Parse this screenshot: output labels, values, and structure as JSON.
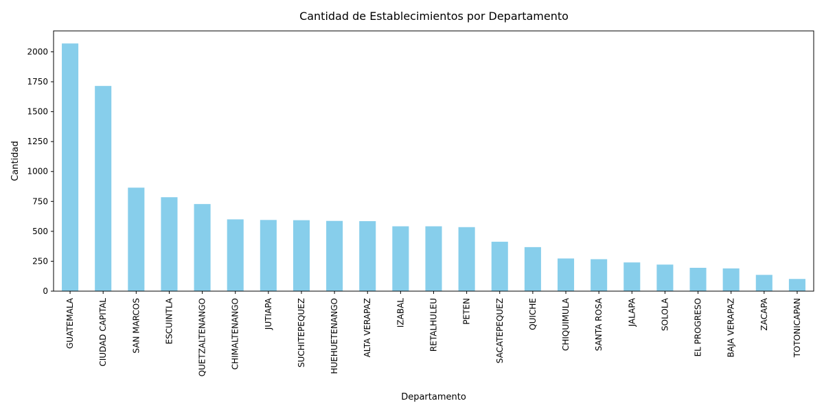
{
  "chart_data": {
    "type": "bar",
    "title": "Cantidad de Establecimientos por Departamento",
    "xlabel": "Departamento",
    "ylabel": "Cantidad",
    "categories": [
      "GUATEMALA",
      "CIUDAD CAPITAL",
      "SAN MARCOS",
      "ESCUINTLA",
      "QUETZALTENANGO",
      "CHIMALTENANGO",
      "JUTIAPA",
      "SUCHITEPEQUEZ",
      "HUEHUETENANGO",
      "ALTA VERAPAZ",
      "IZABAL",
      "RETALHULEU",
      "PETEN",
      "SACATEPEQUEZ",
      "QUICHE",
      "CHIQUIMULA",
      "SANTA ROSA",
      "JALAPA",
      "SOLOLA",
      "EL PROGRESO",
      "BAJA VERAPAZ",
      "ZACAPA",
      "TOTONICAPAN"
    ],
    "values": [
      2070,
      1715,
      865,
      785,
      728,
      600,
      595,
      593,
      587,
      585,
      542,
      542,
      535,
      413,
      368,
      273,
      267,
      240,
      222,
      195,
      190,
      136,
      102
    ],
    "ylim": [
      0,
      2175
    ],
    "yticks": [
      0,
      250,
      500,
      750,
      1000,
      1250,
      1500,
      1750,
      2000
    ],
    "bar_color": "#87ceeb",
    "grid": false,
    "legend": "none"
  }
}
